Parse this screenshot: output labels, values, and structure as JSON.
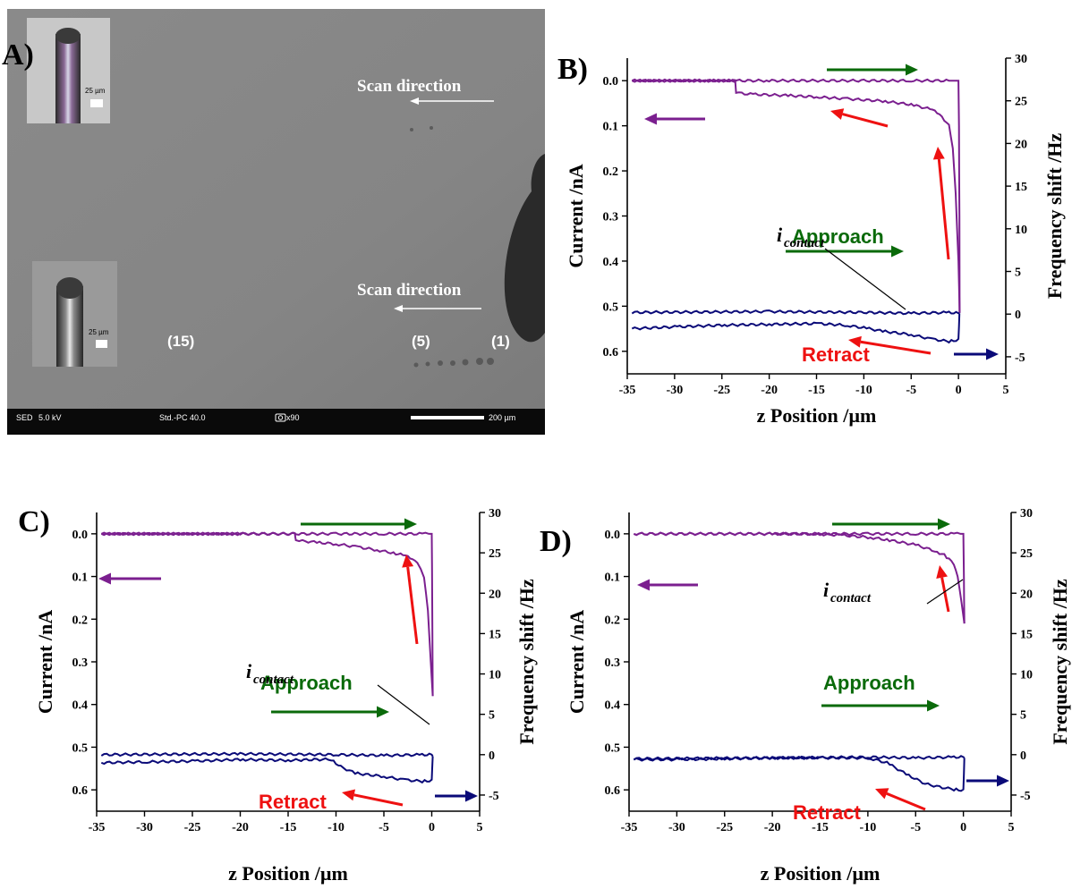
{
  "colors": {
    "current": "#7b1f8f",
    "frequency": "#0a0a78",
    "approach": "#0a6a0a",
    "retract": "#ee1111",
    "black": "#000000"
  },
  "micrograph": {
    "panel_label": "A)",
    "scan_direction_top": "Scan direction",
    "scan_direction_bottom": "Scan direction",
    "spot_labels": [
      "(15)",
      "(5)",
      "(1)"
    ],
    "inset_scale_top": "25 µm",
    "inset_scale_bottom": "25 µm",
    "status_bar": {
      "detector": "SED",
      "voltage": "5.0 kV",
      "mode": "Std.-PC 40.0",
      "magnification": "x90",
      "scale": "200 µm"
    }
  },
  "chart_data": [
    {
      "type": "line",
      "panel_label": "B)",
      "xlabel": "z Position /µm",
      "ylabel_left": "Current /nA",
      "ylabel_right": "Frequency shift /Hz",
      "xlim": [
        -35,
        5
      ],
      "ylim_left": [
        0.65,
        -0.05
      ],
      "ylim_right": [
        -7,
        30
      ],
      "x_ticks": [
        -35,
        -30,
        -25,
        -20,
        -15,
        -10,
        -5,
        0,
        5
      ],
      "y_left_ticks": [
        "0.0",
        "0.1",
        "0.2",
        "0.3",
        "0.4",
        "0.5",
        "0.6"
      ],
      "y_right_ticks": [
        "30",
        "25",
        "20",
        "15",
        "10",
        "5",
        "0",
        "-5"
      ],
      "annotations": {
        "approach": "Approach",
        "retract": "Retract",
        "contact_main": "i",
        "contact_sub": "contact"
      },
      "series": [
        {
          "axis": "left",
          "color_key": "current",
          "x": [
            -34.5,
            -20,
            -10,
            -5,
            -1,
            -0.5,
            -0.3,
            -0.1,
            0,
            0.05,
            0.1,
            0.12
          ],
          "y": [
            0.0,
            0.0,
            0.0,
            0.0,
            0.0,
            0.0,
            0.0,
            0.0,
            0.0,
            0.1,
            0.3,
            0.515
          ]
        },
        {
          "axis": "left",
          "color_key": "current",
          "x": [
            0.12,
            0.0,
            -0.3,
            -0.6,
            -1,
            -2,
            -3,
            -5,
            -8,
            -12,
            -15,
            -18,
            -22,
            -23.5,
            -23.6,
            -27,
            -34.5
          ],
          "y": [
            0.515,
            0.4,
            0.25,
            0.15,
            0.1,
            0.073,
            0.063,
            0.053,
            0.045,
            0.04,
            0.036,
            0.033,
            0.03,
            0.027,
            0.0,
            0.0,
            0.0
          ]
        },
        {
          "axis": "right",
          "color_key": "frequency",
          "x": [
            -34.5,
            -20,
            -10,
            -5,
            -1,
            0,
            0.1
          ],
          "y": [
            0.2,
            0.3,
            0.2,
            0.1,
            0.2,
            0.1,
            0.1
          ]
        },
        {
          "axis": "right",
          "color_key": "frequency",
          "x": [
            0.1,
            0,
            -1,
            -3,
            -5,
            -8,
            -10,
            -12,
            -15,
            -20,
            -25,
            -30,
            -34.5
          ],
          "y": [
            0.1,
            -3.0,
            -3.2,
            -2.9,
            -2.4,
            -2.0,
            -1.6,
            -1.3,
            -1.1,
            -1.2,
            -1.3,
            -1.5,
            -1.7
          ]
        }
      ]
    },
    {
      "type": "line",
      "panel_label": "C)",
      "xlabel": "z Position /µm",
      "ylabel_left": "Current /nA",
      "ylabel_right": "Frequency shift /Hz",
      "xlim": [
        -35,
        5
      ],
      "ylim_left": [
        0.65,
        -0.05
      ],
      "ylim_right": [
        -7,
        30
      ],
      "x_ticks": [
        -35,
        -30,
        -25,
        -20,
        -15,
        -10,
        -5,
        0,
        5
      ],
      "y_left_ticks": [
        "0.0",
        "0.1",
        "0.2",
        "0.3",
        "0.4",
        "0.5",
        "0.6"
      ],
      "y_right_ticks": [
        "30",
        "25",
        "20",
        "15",
        "10",
        "5",
        "0",
        "-5"
      ],
      "annotations": {
        "approach": "Approach",
        "retract": "Retract",
        "contact_main": "i",
        "contact_sub": "contact"
      },
      "series": [
        {
          "axis": "left",
          "color_key": "current",
          "x": [
            -34.5,
            -20,
            -10,
            -5,
            -1,
            -0.3,
            0,
            0.05,
            0.1
          ],
          "y": [
            0.0,
            0.0,
            0.0,
            0.0,
            0.0,
            0.0,
            0.0,
            0.15,
            0.38
          ]
        },
        {
          "axis": "left",
          "color_key": "current",
          "x": [
            0.1,
            -0.1,
            -0.4,
            -0.8,
            -1.5,
            -2,
            -3,
            -4,
            -6,
            -8,
            -10,
            -12,
            -13.5,
            -14.2,
            -14.3,
            -20,
            -34.5
          ],
          "y": [
            0.38,
            0.3,
            0.18,
            0.1,
            0.068,
            0.058,
            0.05,
            0.045,
            0.037,
            0.03,
            0.024,
            0.02,
            0.017,
            0.015,
            0.0,
            0.0,
            0.0
          ]
        },
        {
          "axis": "right",
          "color_key": "frequency",
          "x": [
            -34.5,
            -20,
            -10,
            -5,
            -1,
            0,
            0.1
          ],
          "y": [
            0.0,
            0.1,
            0.0,
            -0.1,
            0.0,
            0.0,
            -0.2
          ]
        },
        {
          "axis": "right",
          "color_key": "frequency",
          "x": [
            0.1,
            0,
            -1,
            -3,
            -5,
            -8,
            -9.5,
            -10.5,
            -12,
            -15,
            -20,
            -25,
            -30,
            -34.5
          ],
          "y": [
            -0.2,
            -3.2,
            -3.3,
            -3.1,
            -2.7,
            -2.3,
            -1.5,
            -0.6,
            -0.6,
            -0.7,
            -0.6,
            -0.8,
            -0.9,
            -1.0
          ]
        }
      ]
    },
    {
      "type": "line",
      "panel_label": "D)",
      "xlabel": "z Position /µm",
      "ylabel_left": "Current /nA",
      "ylabel_right": "Frequency shift /Hz",
      "xlim": [
        -35,
        5
      ],
      "ylim_left": [
        0.65,
        -0.05
      ],
      "ylim_right": [
        -7,
        30
      ],
      "x_ticks": [
        -35,
        -30,
        -25,
        -20,
        -15,
        -10,
        -5,
        0,
        5
      ],
      "y_left_ticks": [
        "0.0",
        "0.1",
        "0.2",
        "0.3",
        "0.4",
        "0.5",
        "0.6"
      ],
      "y_right_ticks": [
        "30",
        "25",
        "20",
        "15",
        "10",
        "5",
        "0",
        "-5"
      ],
      "annotations": {
        "approach": "Approach",
        "retract": "Retract",
        "contact_main": "i",
        "contact_sub": "contact"
      },
      "series": [
        {
          "axis": "left",
          "color_key": "current",
          "x": [
            -34.5,
            -20,
            -10,
            -5,
            -1,
            -0.3,
            0,
            0.05,
            0.1
          ],
          "y": [
            0.0,
            0.0,
            0.0,
            0.0,
            0.0,
            0.0,
            0.0,
            0.1,
            0.21
          ]
        },
        {
          "axis": "left",
          "color_key": "current",
          "x": [
            0.1,
            -0.2,
            -0.6,
            -1,
            -2,
            -3,
            -5,
            -8,
            -10,
            -13,
            -16,
            -20,
            -34.5
          ],
          "y": [
            0.21,
            0.16,
            0.1,
            0.07,
            0.05,
            0.04,
            0.026,
            0.014,
            0.008,
            0.003,
            0.0,
            0.0,
            0.0
          ]
        },
        {
          "axis": "right",
          "color_key": "frequency",
          "x": [
            -34.5,
            -20,
            -10,
            -5,
            -1,
            0,
            0.1
          ],
          "y": [
            -0.5,
            -0.4,
            -0.3,
            -0.4,
            -0.3,
            -0.3,
            -0.4
          ]
        },
        {
          "axis": "right",
          "color_key": "frequency",
          "x": [
            0.1,
            0,
            -1,
            -2.5,
            -4,
            -6,
            -8,
            -10,
            -15,
            -20,
            -25,
            -30,
            -34.5
          ],
          "y": [
            -0.4,
            -4.4,
            -4.3,
            -4.0,
            -3.6,
            -2.4,
            -1.0,
            -0.4,
            -0.4,
            -0.4,
            -0.5,
            -0.6,
            -0.6
          ]
        }
      ]
    }
  ]
}
